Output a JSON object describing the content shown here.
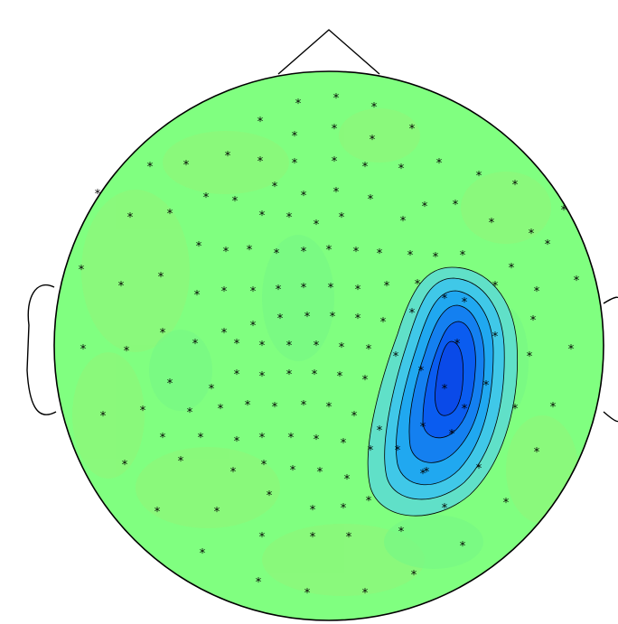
{
  "colors": {
    "background": "#ffffff",
    "field": "#80ff80",
    "field_variant": "#8cf87a",
    "contour_fill_1": "#40c8e8",
    "contour_fill_2": "#20a8f0",
    "contour_fill_3": "#1480f0",
    "contour_fill_4": "#0a5cf0",
    "outline": "#000000",
    "marker": "#000000"
  },
  "marker_glyph": "*"
}
